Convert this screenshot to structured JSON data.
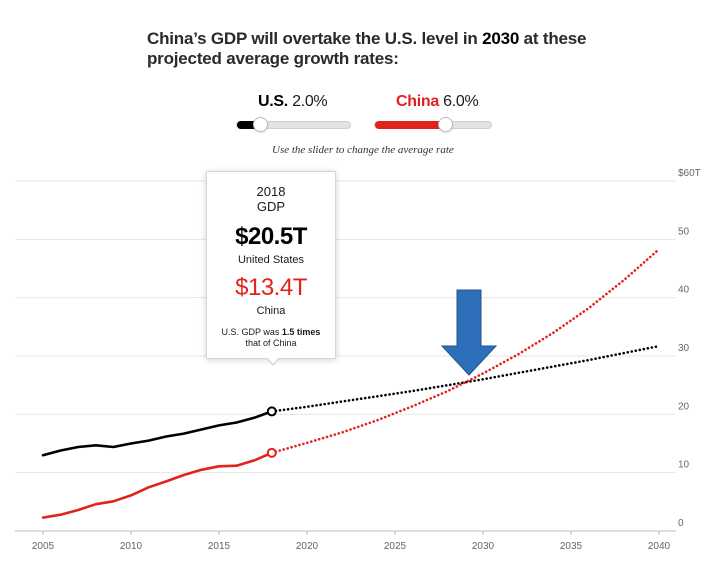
{
  "title_pre": "China’s GDP will overtake the U.S. level in ",
  "title_year": "2030",
  "title_post": " at these projected average growth rates:",
  "sliders": {
    "us": {
      "country": "U.S.",
      "rate": "2.0%",
      "value": 2.0,
      "color": "#000000"
    },
    "china": {
      "country": "China",
      "rate": "6.0%",
      "value": 6.0,
      "color": "#e0231c"
    },
    "min": 0.0,
    "max": 10.0,
    "hint": "Use the slider to change the average rate"
  },
  "tooltip": {
    "year": "2018",
    "gdp_label": "GDP",
    "us_value": "$20.5T",
    "us_name": "United States",
    "china_value": "$13.4T",
    "china_name": "China",
    "note_pre": "U.S. GDP was ",
    "note_bold": "1.5 times",
    "note_post": " that of China"
  },
  "annotation": {
    "type": "arrow-down",
    "color": "#2e6fba",
    "points_to": "crossover-2030"
  },
  "chart_data": {
    "type": "line",
    "title": "China’s GDP will overtake the U.S. level in 2030 at these projected average growth rates:",
    "xlabel": "",
    "ylabel": "",
    "xlim": [
      2005,
      2040
    ],
    "ylim": [
      0,
      60
    ],
    "x_ticks": [
      2005,
      2010,
      2015,
      2020,
      2025,
      2030,
      2035,
      2040
    ],
    "y_ticks": [
      0,
      10,
      20,
      30,
      40,
      50,
      60
    ],
    "y_tick_labels": [
      "0",
      "10",
      "20",
      "30",
      "40",
      "50",
      "$60T"
    ],
    "grid": true,
    "series": [
      {
        "name": "U.S. (historical)",
        "color": "#000000",
        "style": "solid",
        "x": [
          2005,
          2006,
          2007,
          2008,
          2009,
          2010,
          2011,
          2012,
          2013,
          2014,
          2015,
          2016,
          2017,
          2018
        ],
        "y": [
          13.0,
          13.8,
          14.4,
          14.7,
          14.4,
          15.0,
          15.5,
          16.2,
          16.7,
          17.4,
          18.1,
          18.6,
          19.4,
          20.5
        ]
      },
      {
        "name": "U.S. (projected, 2.0%)",
        "color": "#000000",
        "style": "dotted",
        "x": [
          2018,
          2020,
          2022,
          2024,
          2026,
          2028,
          2030,
          2032,
          2034,
          2036,
          2038,
          2040
        ],
        "y": [
          20.5,
          21.3,
          22.2,
          23.1,
          24.0,
          25.0,
          26.0,
          27.1,
          28.2,
          29.3,
          30.5,
          31.7
        ]
      },
      {
        "name": "China (historical)",
        "color": "#e0231c",
        "style": "solid",
        "x": [
          2005,
          2006,
          2007,
          2008,
          2009,
          2010,
          2011,
          2012,
          2013,
          2014,
          2015,
          2016,
          2017,
          2018
        ],
        "y": [
          2.3,
          2.8,
          3.6,
          4.6,
          5.1,
          6.1,
          7.5,
          8.5,
          9.6,
          10.5,
          11.1,
          11.2,
          12.1,
          13.4
        ]
      },
      {
        "name": "China (projected, 6.0%)",
        "color": "#e0231c",
        "style": "dotted",
        "x": [
          2018,
          2020,
          2022,
          2024,
          2026,
          2028,
          2030,
          2032,
          2034,
          2036,
          2038,
          2040
        ],
        "y": [
          13.4,
          15.1,
          16.9,
          19.0,
          21.4,
          24.0,
          27.0,
          30.3,
          34.0,
          38.2,
          43.0,
          48.3
        ]
      }
    ],
    "markers": [
      {
        "x": 2018,
        "y": 20.5,
        "series": "U.S."
      },
      {
        "x": 2018,
        "y": 13.4,
        "series": "China"
      }
    ]
  }
}
